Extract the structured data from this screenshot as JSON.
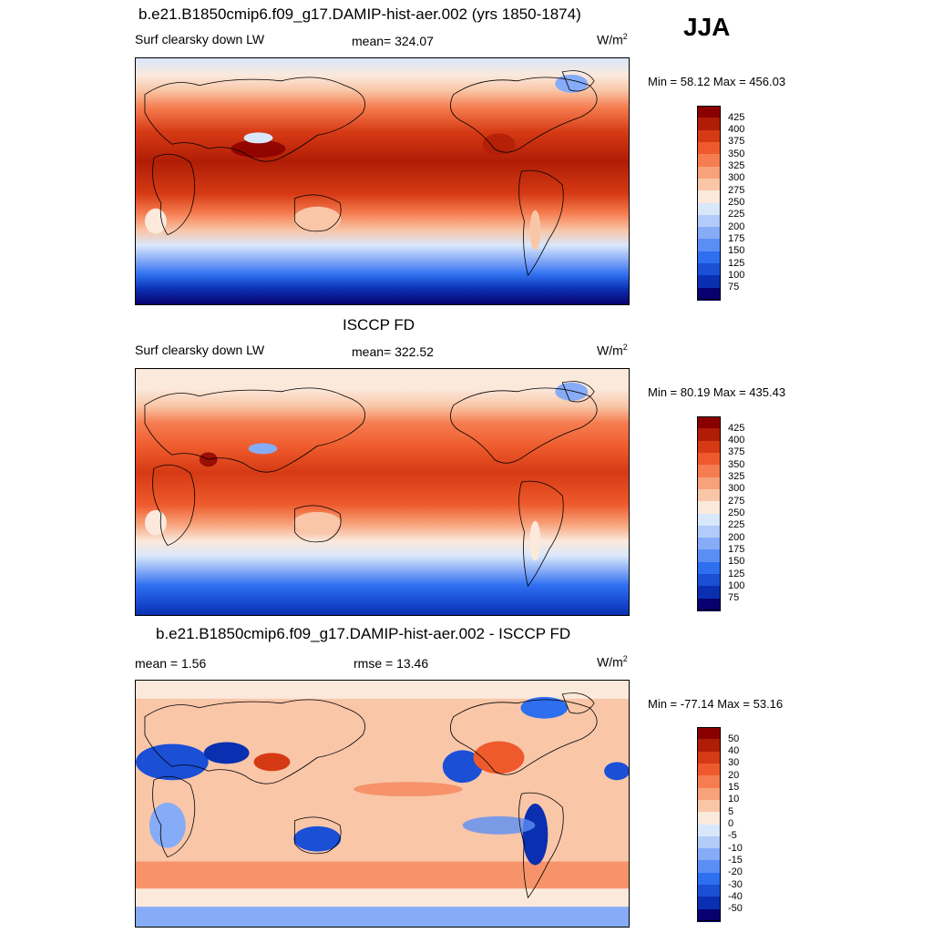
{
  "season": "JJA",
  "panels": [
    {
      "title": "b.e21.B1850cmip6.f09_g17.DAMIP-hist-aer.002 (yrs 1850-1874)",
      "left_label": "Surf clearsky down LW",
      "center_label": "mean= 324.07",
      "units": "W/m",
      "units_sup": "2",
      "minmax": "Min =  58.12 Max = 456.03"
    },
    {
      "title": "ISCCP FD",
      "left_label": "Surf clearsky down LW",
      "center_label": "mean= 322.52",
      "units": "W/m",
      "units_sup": "2",
      "minmax": "Min =  80.19 Max = 435.43"
    },
    {
      "title": "b.e21.B1850cmip6.f09_g17.DAMIP-hist-aer.002 - ISCCP FD",
      "left_label": "mean =   1.56",
      "center_label": "rmse =  13.46",
      "units": "W/m",
      "units_sup": "2",
      "minmax": "Min = -77.14 Max =  53.16"
    }
  ],
  "chart_data": [
    {
      "type": "heatmap",
      "title": "b.e21.B1850cmip6.f09_g17.DAMIP-hist-aer.002 (yrs 1850-1874)",
      "subtitle": "Surf clearsky down LW",
      "units": "W/m2",
      "mean": 324.07,
      "min": 58.12,
      "max": 456.03,
      "projection": "cylindrical-equidistant",
      "legend_position": "right",
      "levels": [
        75,
        100,
        125,
        150,
        175,
        200,
        225,
        250,
        275,
        300,
        325,
        350,
        375,
        400,
        425
      ],
      "colors": [
        "#08006e",
        "#0a2fb0",
        "#1a4fd6",
        "#2e6ff0",
        "#5b8ef5",
        "#86abf7",
        "#b3cbf9",
        "#d9e7fb",
        "#fbe9dc",
        "#f9c6a8",
        "#f7a27a",
        "#f57d50",
        "#ee5a2c",
        "#d63a14",
        "#b01d06",
        "#8a0000"
      ]
    },
    {
      "type": "heatmap",
      "title": "ISCCP FD",
      "subtitle": "Surf clearsky down LW",
      "units": "W/m2",
      "mean": 322.52,
      "min": 80.19,
      "max": 435.43,
      "projection": "cylindrical-equidistant",
      "legend_position": "right",
      "levels": [
        75,
        100,
        125,
        150,
        175,
        200,
        225,
        250,
        275,
        300,
        325,
        350,
        375,
        400,
        425
      ],
      "colors": [
        "#08006e",
        "#0a2fb0",
        "#1a4fd6",
        "#2e6ff0",
        "#5b8ef5",
        "#86abf7",
        "#b3cbf9",
        "#d9e7fb",
        "#fbe9dc",
        "#f9c6a8",
        "#f7a27a",
        "#f57d50",
        "#ee5a2c",
        "#d63a14",
        "#b01d06",
        "#8a0000"
      ]
    },
    {
      "type": "heatmap",
      "title": "b.e21.B1850cmip6.f09_g17.DAMIP-hist-aer.002 - ISCCP FD",
      "units": "W/m2",
      "mean": 1.56,
      "rmse": 13.46,
      "min": -77.14,
      "max": 53.16,
      "projection": "cylindrical-equidistant",
      "legend_position": "right",
      "levels": [
        -50,
        -40,
        -30,
        -20,
        -15,
        -10,
        -5,
        0,
        5,
        10,
        15,
        20,
        30,
        40,
        50
      ],
      "colors": [
        "#08006e",
        "#0a2fb0",
        "#1a4fd6",
        "#2e6ff0",
        "#5b8ef5",
        "#86abf7",
        "#b3cbf9",
        "#d9e7fb",
        "#fbe9dc",
        "#f9c6a8",
        "#f7a27a",
        "#f57d50",
        "#ee5a2c",
        "#d63a14",
        "#b01d06",
        "#8a0000"
      ]
    }
  ]
}
